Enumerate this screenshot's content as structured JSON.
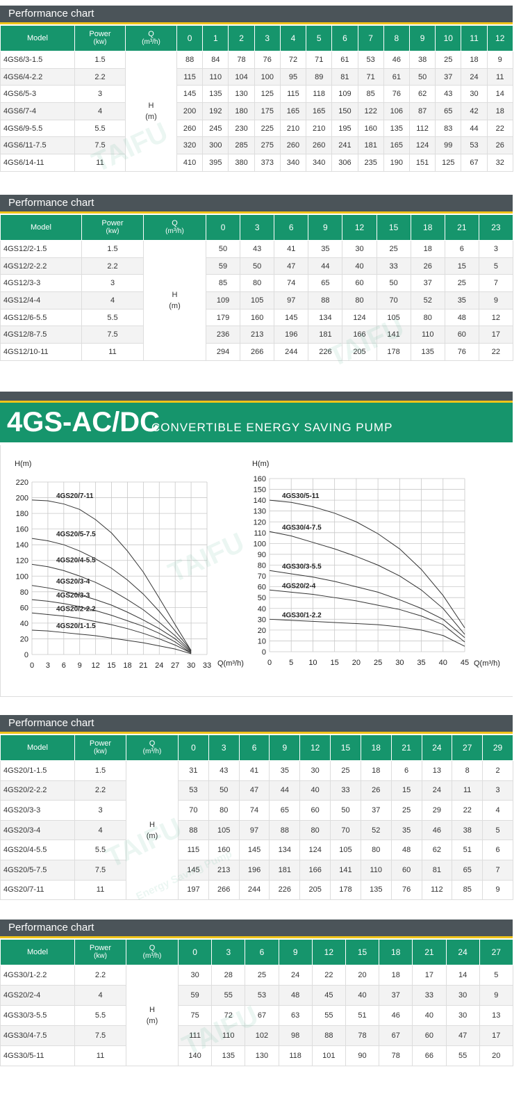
{
  "tables": [
    {
      "title": "Performance chart",
      "header": {
        "model": "Model",
        "power": "Power",
        "power_unit": "(kw)",
        "q": "Q",
        "q_unit": "(m³/h)"
      },
      "h": "H",
      "h_unit": "(m)",
      "flows": [
        0,
        1,
        2,
        3,
        4,
        5,
        6,
        7,
        8,
        9,
        10,
        11,
        12
      ],
      "rows": [
        {
          "model": "4GS6/3-1.5",
          "power": "1.5",
          "heads": [
            88,
            84,
            78,
            76,
            72,
            71,
            61,
            53,
            46,
            38,
            25,
            18,
            9
          ]
        },
        {
          "model": "4GS6/4-2.2",
          "power": "2.2",
          "heads": [
            115,
            110,
            104,
            100,
            95,
            89,
            81,
            71,
            61,
            50,
            37,
            24,
            11
          ]
        },
        {
          "model": "4GS6/5-3",
          "power": "3",
          "heads": [
            145,
            135,
            130,
            125,
            115,
            118,
            109,
            85,
            76,
            62,
            43,
            30,
            14
          ]
        },
        {
          "model": "4GS6/7-4",
          "power": "4",
          "heads": [
            200,
            192,
            180,
            175,
            165,
            165,
            150,
            122,
            106,
            87,
            65,
            42,
            18
          ]
        },
        {
          "model": "4GS6/9-5.5",
          "power": "5.5",
          "heads": [
            260,
            245,
            230,
            225,
            210,
            210,
            195,
            160,
            135,
            112,
            83,
            44,
            22
          ]
        },
        {
          "model": "4GS6/11-7.5",
          "power": "7.5",
          "heads": [
            320,
            300,
            285,
            275,
            260,
            260,
            241,
            181,
            165,
            124,
            99,
            53,
            26
          ]
        },
        {
          "model": "4GS6/14-11",
          "power": "11",
          "heads": [
            410,
            395,
            380,
            373,
            340,
            340,
            306,
            235,
            190,
            151,
            125,
            67,
            32
          ]
        }
      ]
    },
    {
      "title": "Performance chart",
      "header": {
        "model": "Model",
        "power": "Power",
        "power_unit": "(kw)",
        "q": "Q",
        "q_unit": "(m³/h)"
      },
      "h": "H",
      "h_unit": "(m)",
      "flows": [
        0,
        3,
        6,
        9,
        12,
        15,
        18,
        21,
        23
      ],
      "rows": [
        {
          "model": "4GS12/2-1.5",
          "power": "1.5",
          "heads": [
            50,
            43,
            41,
            35,
            30,
            25,
            18,
            6,
            3
          ]
        },
        {
          "model": "4GS12/2-2.2",
          "power": "2.2",
          "heads": [
            59,
            50,
            47,
            44,
            40,
            33,
            26,
            15,
            5
          ]
        },
        {
          "model": "4GS12/3-3",
          "power": "3",
          "heads": [
            85,
            80,
            74,
            65,
            60,
            50,
            37,
            25,
            7
          ]
        },
        {
          "model": "4GS12/4-4",
          "power": "4",
          "heads": [
            109,
            105,
            97,
            88,
            80,
            70,
            52,
            35,
            9
          ]
        },
        {
          "model": "4GS12/6-5.5",
          "power": "5.5",
          "heads": [
            179,
            160,
            145,
            134,
            124,
            105,
            80,
            48,
            12
          ]
        },
        {
          "model": "4GS12/8-7.5",
          "power": "7.5",
          "heads": [
            236,
            213,
            196,
            181,
            166,
            141,
            110,
            60,
            17
          ]
        },
        {
          "model": "4GS12/10-11",
          "power": "11",
          "heads": [
            294,
            266,
            244,
            226,
            205,
            178,
            135,
            76,
            22
          ]
        }
      ]
    },
    {
      "title": "Performance chart",
      "header": {
        "model": "Model",
        "power": "Power",
        "power_unit": "(kw)",
        "q": "Q",
        "q_unit": "(m³/h)"
      },
      "h": "H",
      "h_unit": "(m)",
      "flows": [
        0,
        3,
        6,
        9,
        12,
        15,
        18,
        21,
        24,
        27,
        29
      ],
      "rows": [
        {
          "model": "4GS20/1-1.5",
          "power": "1.5",
          "heads": [
            31,
            43,
            41,
            35,
            30,
            25,
            18,
            6,
            13,
            8,
            2
          ]
        },
        {
          "model": "4GS20/2-2.2",
          "power": "2.2",
          "heads": [
            53,
            50,
            47,
            44,
            40,
            33,
            26,
            15,
            24,
            11,
            3
          ]
        },
        {
          "model": "4GS20/3-3",
          "power": "3",
          "heads": [
            70,
            80,
            74,
            65,
            60,
            50,
            37,
            25,
            29,
            22,
            4
          ]
        },
        {
          "model": "4GS20/3-4",
          "power": "4",
          "heads": [
            88,
            105,
            97,
            88,
            80,
            70,
            52,
            35,
            46,
            38,
            5
          ]
        },
        {
          "model": "4GS20/4-5.5",
          "power": "5.5",
          "heads": [
            115,
            160,
            145,
            134,
            124,
            105,
            80,
            48,
            62,
            51,
            6
          ]
        },
        {
          "model": "4GS20/5-7.5",
          "power": "7.5",
          "heads": [
            145,
            213,
            196,
            181,
            166,
            141,
            110,
            60,
            81,
            65,
            7
          ]
        },
        {
          "model": "4GS20/7-11",
          "power": "11",
          "heads": [
            197,
            266,
            244,
            226,
            205,
            178,
            135,
            76,
            112,
            85,
            9
          ]
        }
      ]
    },
    {
      "title": "Performance chart",
      "header": {
        "model": "Model",
        "power": "Power",
        "power_unit": "(kw)",
        "q": "Q",
        "q_unit": "(m³/h)"
      },
      "h": "H",
      "h_unit": "(m)",
      "flows": [
        0,
        3,
        6,
        9,
        12,
        15,
        18,
        21,
        24,
        27
      ],
      "rows": [
        {
          "model": "4GS30/1-2.2",
          "power": "2.2",
          "heads": [
            30,
            28,
            25,
            24,
            22,
            20,
            18,
            17,
            14,
            5
          ]
        },
        {
          "model": "4GS20/2-4",
          "power": "4",
          "heads": [
            59,
            55,
            53,
            48,
            45,
            40,
            37,
            33,
            30,
            9
          ]
        },
        {
          "model": "4GS30/3-5.5",
          "power": "5.5",
          "heads": [
            75,
            72,
            67,
            63,
            55,
            51,
            46,
            40,
            30,
            13
          ]
        },
        {
          "model": "4GS30/4-7.5",
          "power": "7.5",
          "heads": [
            111,
            110,
            102,
            98,
            88,
            78,
            67,
            60,
            47,
            17
          ]
        },
        {
          "model": "4GS30/5-11",
          "power": "11",
          "heads": [
            140,
            135,
            130,
            118,
            101,
            90,
            78,
            66,
            55,
            20
          ]
        }
      ]
    }
  ],
  "banner": {
    "title": "4GS-AC/DC",
    "subtitle": "CONVERTIBLE ENERGY SAVING PUMP"
  },
  "chart_data": [
    {
      "type": "line",
      "x_label": "Q(m³/h)",
      "y_label": "H(m)",
      "grid": true,
      "xlim": [
        0,
        33
      ],
      "xticks": [
        0,
        3,
        6,
        9,
        12,
        15,
        18,
        21,
        24,
        27,
        30,
        33
      ],
      "ylim": [
        0,
        220
      ],
      "yticks": [
        0,
        20,
        40,
        60,
        80,
        100,
        120,
        140,
        160,
        180,
        200,
        220
      ],
      "x": [
        0,
        3,
        6,
        9,
        12,
        15,
        18,
        21,
        24,
        27,
        30
      ],
      "series": [
        {
          "name": "4GS20/7-11",
          "color": "#333333",
          "values": [
            197,
            196,
            192,
            185,
            172,
            155,
            132,
            105,
            72,
            38,
            5
          ]
        },
        {
          "name": "4GS20/5-7.5",
          "color": "#333333",
          "values": [
            148,
            145,
            140,
            132,
            122,
            110,
            95,
            77,
            55,
            30,
            5
          ]
        },
        {
          "name": "4GS20/4-5.5",
          "color": "#333333",
          "values": [
            115,
            112,
            107,
            100,
            92,
            82,
            70,
            57,
            41,
            24,
            4
          ]
        },
        {
          "name": "4GS20/3-4",
          "color": "#333333",
          "values": [
            88,
            85,
            81,
            76,
            70,
            63,
            54,
            44,
            33,
            20,
            3
          ]
        },
        {
          "name": "4GS20/3-3",
          "color": "#333333",
          "values": [
            70,
            68,
            65,
            61,
            56,
            50,
            43,
            36,
            27,
            16,
            2
          ]
        },
        {
          "name": "4GS20/2-2.2",
          "color": "#333333",
          "values": [
            53,
            51,
            49,
            46,
            42,
            38,
            33,
            27,
            20,
            12,
            2
          ]
        },
        {
          "name": "4GS20/1-1.5",
          "color": "#333333",
          "values": [
            31,
            30,
            28,
            26,
            24,
            21,
            18,
            15,
            11,
            7,
            1
          ]
        }
      ]
    },
    {
      "type": "line",
      "x_label": "Q(m³/h)",
      "y_label": "H(m)",
      "grid": true,
      "xlim": [
        0,
        45
      ],
      "xticks": [
        0,
        5,
        10,
        15,
        20,
        25,
        30,
        35,
        40,
        45
      ],
      "ylim": [
        0,
        160
      ],
      "yticks": [
        0,
        10,
        20,
        30,
        40,
        50,
        60,
        70,
        80,
        90,
        100,
        110,
        120,
        130,
        140,
        150,
        160
      ],
      "x": [
        0,
        5,
        10,
        15,
        20,
        25,
        30,
        35,
        40,
        45
      ],
      "series": [
        {
          "name": "4GS30/5-11",
          "color": "#333333",
          "values": [
            140,
            138,
            134,
            128,
            120,
            109,
            95,
            76,
            52,
            22
          ]
        },
        {
          "name": "4GS30/4-7.5",
          "color": "#333333",
          "values": [
            111,
            107,
            101,
            95,
            88,
            80,
            70,
            57,
            40,
            16
          ]
        },
        {
          "name": "4GS30/3-5.5",
          "color": "#333333",
          "values": [
            75,
            72,
            69,
            65,
            60,
            55,
            48,
            40,
            30,
            13
          ]
        },
        {
          "name": "4GS20/2-4",
          "color": "#333333",
          "values": [
            57,
            55,
            53,
            50,
            47,
            43,
            39,
            33,
            25,
            9
          ]
        },
        {
          "name": "4GS30/1-2.2",
          "color": "#333333",
          "values": [
            30,
            29,
            28,
            27,
            26,
            25,
            23,
            20,
            15,
            5
          ]
        }
      ]
    }
  ],
  "watermark": {
    "brand": "TAIFU",
    "tagline": "Energy Saving Pump"
  }
}
